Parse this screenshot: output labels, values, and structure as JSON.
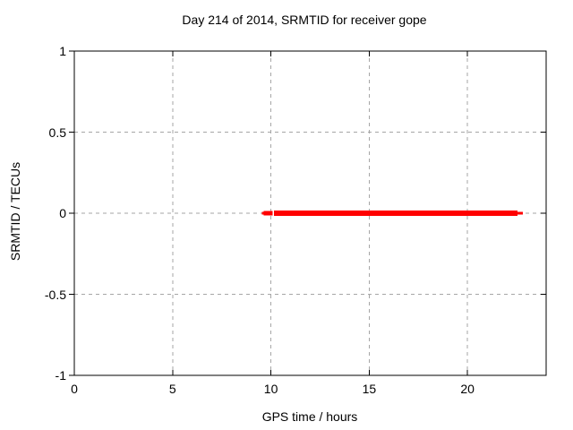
{
  "title": "Day 214 of 2014, SRMTID for receiver gope",
  "chart_data": {
    "type": "line",
    "title": "Day 214 of 2014, SRMTID for receiver gope",
    "xlabel": "GPS time / hours",
    "ylabel": "SRMTID / TECUs",
    "xlim": [
      0,
      24
    ],
    "ylim": [
      -1,
      1
    ],
    "xticks": [
      0,
      5,
      10,
      15,
      20
    ],
    "xtick_labels": [
      "0",
      "5",
      "10",
      "15",
      "20"
    ],
    "yticks": [
      -1,
      -0.5,
      0,
      0.5,
      1
    ],
    "ytick_labels": [
      "-1",
      "-0.5",
      "0",
      "0.5",
      "1"
    ],
    "grid": true,
    "grid_color": "#a6a6a6",
    "frame_color": "#000000",
    "legend_position": "none",
    "series": [
      {
        "name": "SRMTID",
        "color": "#ff0000",
        "y_value": 0,
        "x_start": 9.6,
        "x_end": 22.8,
        "gap": [
          10.08,
          10.16
        ],
        "segments": [
          {
            "x1": 9.55,
            "x2": 9.63,
            "lw": 3
          },
          {
            "x1": 9.63,
            "x2": 10.08,
            "lw": 5
          },
          {
            "x1": 10.16,
            "x2": 22.55,
            "lw": 6
          },
          {
            "x1": 22.55,
            "x2": 22.82,
            "lw": 3
          }
        ]
      }
    ]
  }
}
